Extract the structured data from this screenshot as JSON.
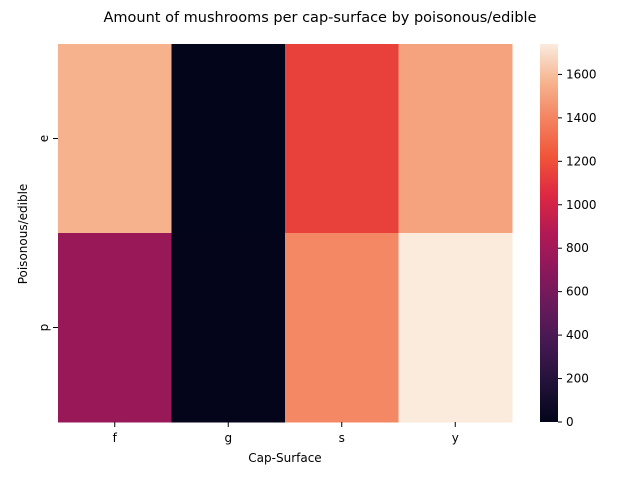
{
  "chart_data": {
    "type": "heatmap",
    "title": "Amount of mushrooms per cap-surface by poisonous/edible",
    "xlabel": "Cap-Surface",
    "ylabel": "Poisonous/edible",
    "x_categories": [
      "f",
      "g",
      "s",
      "y"
    ],
    "y_categories": [
      "e",
      "p"
    ],
    "values": [
      [
        1560,
        0,
        1144,
        1504
      ],
      [
        760,
        4,
        1412,
        1740
      ]
    ],
    "colorbar": {
      "min": 0,
      "max": 1740,
      "ticks": [
        0,
        200,
        400,
        600,
        800,
        1000,
        1200,
        1400,
        1600
      ],
      "colormap": "rocket"
    }
  }
}
